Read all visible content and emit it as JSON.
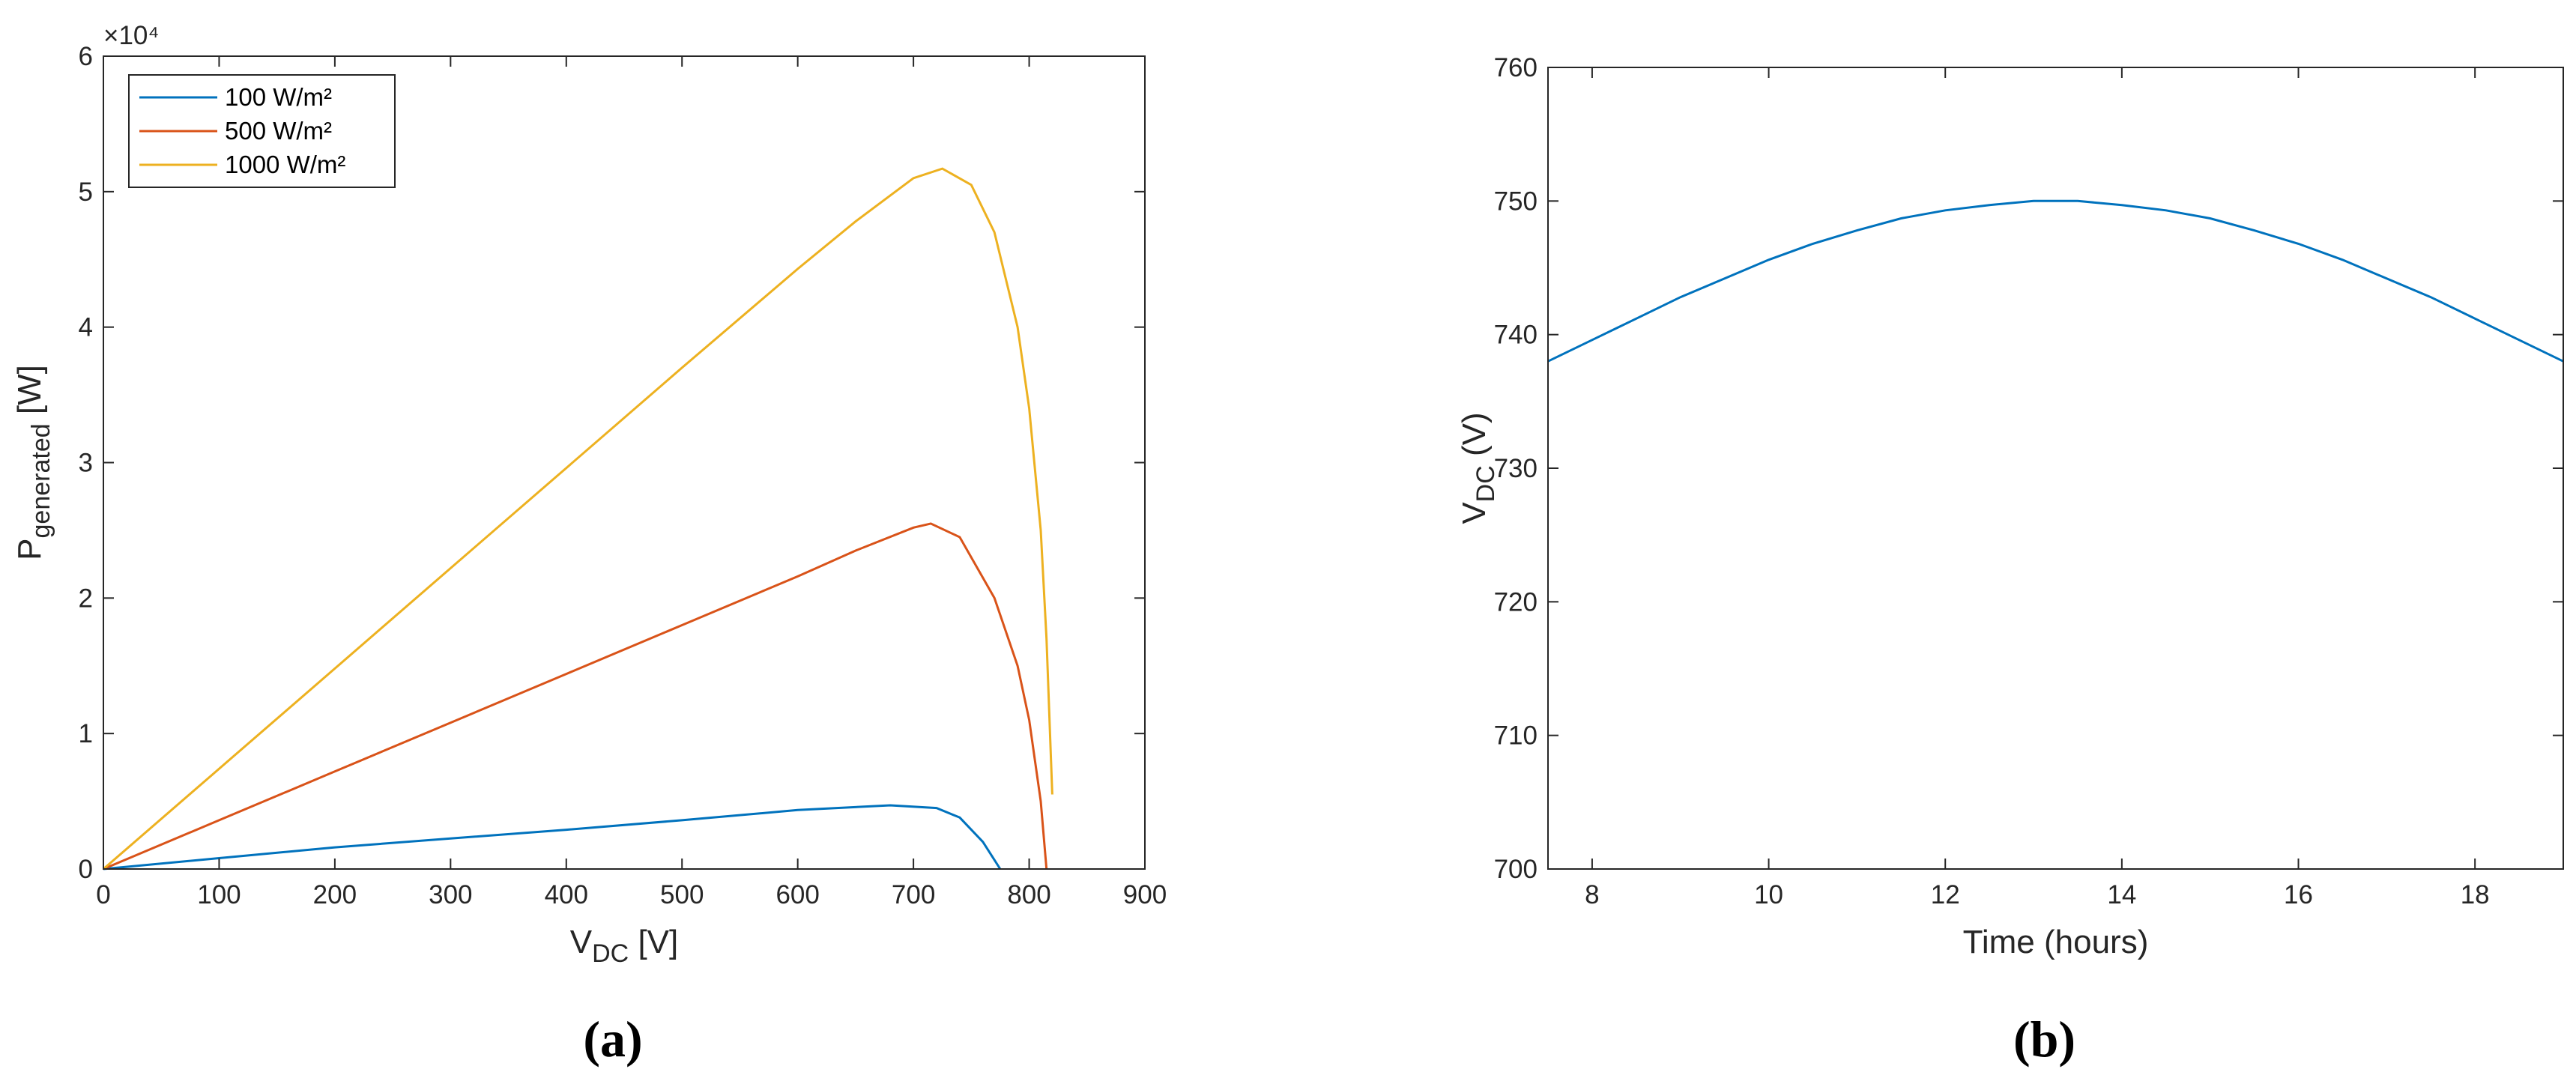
{
  "chart_data": [
    {
      "type": "line",
      "y_exponent": "×10⁴",
      "xlabel": {
        "main": "V",
        "sub": "DC",
        "rest": " [V]"
      },
      "ylabel": {
        "main": "P",
        "sub": "generated",
        "rest": " [W]"
      },
      "caption": "(a)",
      "xlim": [
        0,
        900
      ],
      "xticks": [
        0,
        100,
        200,
        300,
        400,
        500,
        600,
        700,
        800,
        900
      ],
      "ylim": [
        0,
        6
      ],
      "yticks": [
        0,
        1,
        2,
        3,
        4,
        5,
        6
      ],
      "legend": "top-left",
      "series": [
        {
          "name": "100 W/m²",
          "color": "#0072bd",
          "x": [
            0,
            100,
            200,
            300,
            400,
            500,
            600,
            680,
            720,
            740,
            760,
            775
          ],
          "values": [
            0,
            0.08,
            0.16,
            0.225,
            0.29,
            0.36,
            0.435,
            0.47,
            0.45,
            0.38,
            0.2,
            0
          ]
        },
        {
          "name": "500 W/m²",
          "color": "#d95319",
          "x": [
            0,
            100,
            200,
            300,
            400,
            500,
            600,
            650,
            700,
            715,
            740,
            770,
            790,
            800,
            810,
            815
          ],
          "values": [
            0,
            0.36,
            0.72,
            1.08,
            1.44,
            1.8,
            2.16,
            2.35,
            2.52,
            2.55,
            2.45,
            2.0,
            1.5,
            1.1,
            0.5,
            0
          ]
        },
        {
          "name": "1000 W/m²",
          "color": "#edb120",
          "x": [
            0,
            100,
            200,
            300,
            400,
            500,
            600,
            650,
            700,
            725,
            750,
            770,
            790,
            800,
            810,
            815,
            820
          ],
          "values": [
            0,
            0.74,
            1.48,
            2.22,
            2.96,
            3.7,
            4.43,
            4.78,
            5.1,
            5.17,
            5.05,
            4.7,
            4.0,
            3.4,
            2.5,
            1.7,
            0.55
          ]
        }
      ]
    },
    {
      "type": "line",
      "xlabel": {
        "main": "Time (hours)"
      },
      "ylabel": {
        "main": "V",
        "sub": "DC",
        "rest": " (V)"
      },
      "caption": "(b)",
      "xlim": [
        7.5,
        19
      ],
      "xticks": [
        8,
        10,
        12,
        14,
        16,
        18
      ],
      "ylim": [
        700,
        760
      ],
      "yticks": [
        700,
        710,
        720,
        730,
        740,
        750,
        760
      ],
      "series": [
        {
          "color": "#0072bd",
          "x": [
            7.5,
            8,
            8.5,
            9,
            9.5,
            10,
            10.5,
            11,
            11.5,
            12,
            12.5,
            13,
            13.5,
            14,
            14.5,
            15,
            15.5,
            16,
            16.5,
            17,
            17.5,
            18,
            18.5,
            19
          ],
          "values": [
            738.0,
            739.6,
            741.2,
            742.8,
            744.2,
            745.6,
            746.8,
            747.8,
            748.7,
            749.3,
            749.7,
            750.0,
            750.0,
            749.7,
            749.3,
            748.7,
            747.8,
            746.8,
            745.6,
            744.2,
            742.8,
            741.2,
            739.6,
            738.0
          ]
        }
      ]
    }
  ]
}
